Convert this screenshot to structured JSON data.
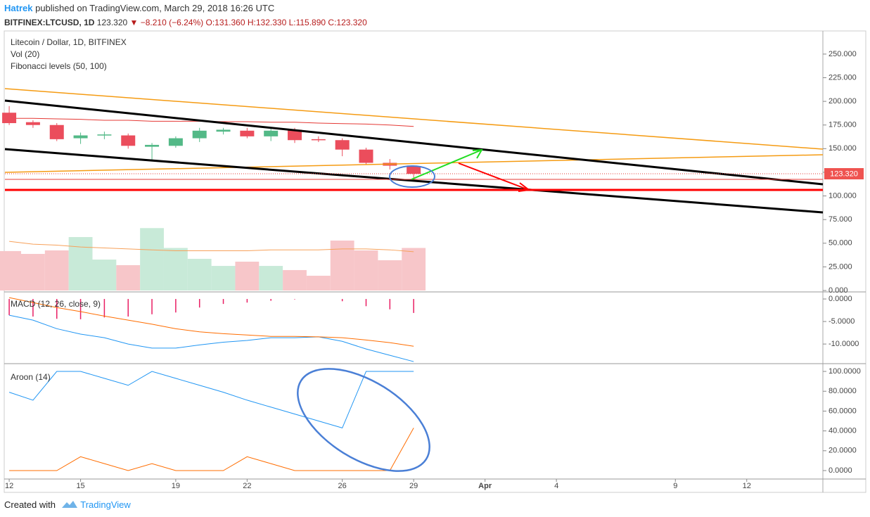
{
  "header": {
    "author": "Hatrek",
    "published": "published on TradingView.com, March 29, 2018 16:26 UTC",
    "symbol": "BITFINEX:LTCUSD, 1D",
    "price": "123.320",
    "change": "▼ −8.210 (−6.24%)",
    "ohlc": "O:131.360 H:132.330 L:115.890 C:123.320"
  },
  "footer": {
    "created": "Created with",
    "brand": "TradingView"
  },
  "chart_data": [
    {
      "type": "candlestick",
      "title": "Litecoin / Dollar, 1D, BITFINEX",
      "volume_label": "Vol (20)",
      "indicator_label": "Fibonacci levels (50, 100)",
      "last_price_label": "123.320",
      "up_color": "#53b987",
      "down_color": "#eb4d5c",
      "volume_up_color": "#c8ead8",
      "volume_down_color": "#f7c6c9",
      "ma_color": "#e53935",
      "volume_ma_color": "#f7a15a",
      "x": [
        0,
        1,
        2,
        3,
        4,
        5,
        6,
        7,
        8,
        9,
        10,
        11,
        12,
        13,
        14,
        15,
        16,
        17
      ],
      "xlim": [
        -0.18,
        34.2
      ],
      "xticks": [
        {
          "value": 0,
          "label": "12"
        },
        {
          "value": 3,
          "label": "15"
        },
        {
          "value": 7,
          "label": "19"
        },
        {
          "value": 10,
          "label": "22"
        },
        {
          "value": 14,
          "label": "26"
        },
        {
          "value": 17,
          "label": "29"
        },
        {
          "value": 20,
          "label": "Apr"
        },
        {
          "value": 23,
          "label": "4"
        },
        {
          "value": 28,
          "label": "9"
        },
        {
          "value": 31,
          "label": "12"
        }
      ],
      "open": [
        188,
        178,
        175,
        161,
        164,
        164,
        152,
        153,
        161,
        168,
        169,
        163,
        170,
        160,
        159,
        149,
        135,
        131.36
      ],
      "high": [
        195,
        180,
        177,
        167,
        168,
        166,
        156,
        163,
        172,
        172,
        172,
        171,
        172,
        163,
        161,
        151,
        139,
        132.33
      ],
      "low": [
        175,
        172,
        158,
        155,
        160,
        150,
        138,
        151,
        157,
        165,
        161,
        158,
        156,
        157,
        142,
        133,
        128,
        115.89
      ],
      "close": [
        177,
        175,
        160,
        164,
        165,
        153,
        154,
        161,
        169,
        170,
        163,
        169,
        159,
        159,
        149,
        135,
        132,
        123.32
      ],
      "volume": [
        41.7,
        38.7,
        42.4,
        56.5,
        32.7,
        26.8,
        66,
        45,
        33.5,
        26,
        30.5,
        26,
        21.6,
        15.6,
        52.8,
        42.4,
        32,
        45
      ],
      "volume_ma": [
        52,
        49,
        48,
        46,
        45,
        44,
        43,
        42,
        42,
        42,
        42,
        43,
        43,
        43,
        44,
        44,
        43,
        41
      ],
      "ma": [
        182,
        182,
        181.5,
        181,
        180,
        180,
        179,
        179,
        179,
        178.5,
        178.5,
        178,
        178,
        177,
        176.5,
        176,
        175,
        173.5
      ],
      "ylim": [
        0,
        270
      ],
      "yticks": [
        {
          "value": 0,
          "label": "0.000"
        },
        {
          "value": 25,
          "label": "25.000"
        },
        {
          "value": 50,
          "label": "50.000"
        },
        {
          "value": 75,
          "label": "75.000"
        },
        {
          "value": 100,
          "label": "100.000"
        },
        {
          "value": 125,
          "label": "125.000"
        },
        {
          "value": 150,
          "label": "150.000"
        },
        {
          "value": 175,
          "label": "175.000"
        },
        {
          "value": 200,
          "label": "200.000"
        },
        {
          "value": 225,
          "label": "225.000"
        },
        {
          "value": 250,
          "label": "250.000"
        }
      ]
    },
    {
      "type": "macd",
      "title": "MACD (12, 26, close, 9)",
      "ylim": [
        -14.2,
        1.1
      ],
      "yticks": [
        {
          "value": 0,
          "label": "0.0000"
        },
        {
          "value": -5,
          "label": "-5.0000"
        },
        {
          "value": -10,
          "label": "-10.0000"
        }
      ],
      "histogram_color": "#e91e63",
      "histogram": [
        -3.6,
        -3.9,
        -4.4,
        -4.5,
        -4.1,
        -3.9,
        -3.4,
        -3,
        -1.9,
        -1.1,
        -0.8,
        -0.4,
        -0.1,
        0,
        -0.5,
        -1.6,
        -2.3,
        -3.1
      ],
      "series": [
        {
          "color": "#2196f3",
          "values": [
            -3.6,
            -4.7,
            -6.6,
            -7.8,
            -8.6,
            -10,
            -10.9,
            -10.9,
            -10.2,
            -9.6,
            -9.2,
            -8.6,
            -8.6,
            -8.4,
            -9.4,
            -11.1,
            -12.5,
            -13.9
          ]
        },
        {
          "color": "#ff6d00",
          "values": [
            0.3,
            -0.8,
            -1.9,
            -2.8,
            -3.8,
            -4.7,
            -5.6,
            -6.6,
            -7.3,
            -7.7,
            -8,
            -8.3,
            -8.3,
            -8.4,
            -8.6,
            -9.1,
            -9.7,
            -10.5
          ]
        }
      ]
    },
    {
      "type": "aroon",
      "title": "Aroon (14)",
      "ylim": [
        -7.8,
        105.7
      ],
      "yticks": [
        {
          "value": 0,
          "label": "0.0000"
        },
        {
          "value": 20,
          "label": "20.0000"
        },
        {
          "value": 40,
          "label": "40.0000"
        },
        {
          "value": 60,
          "label": "60.0000"
        },
        {
          "value": 80,
          "label": "80.0000"
        },
        {
          "value": 100,
          "label": "100.0000"
        }
      ],
      "series": [
        {
          "color": "#2196f3",
          "values": [
            79,
            71,
            100,
            100,
            93,
            86,
            100,
            93,
            86,
            79,
            71,
            64,
            57,
            50,
            43,
            100,
            100,
            100
          ]
        },
        {
          "color": "#ff6d00",
          "values": [
            0,
            0,
            0,
            14,
            7,
            0,
            7,
            0,
            0,
            0,
            14,
            7,
            0,
            0,
            0,
            0,
            0,
            43
          ]
        }
      ]
    }
  ]
}
